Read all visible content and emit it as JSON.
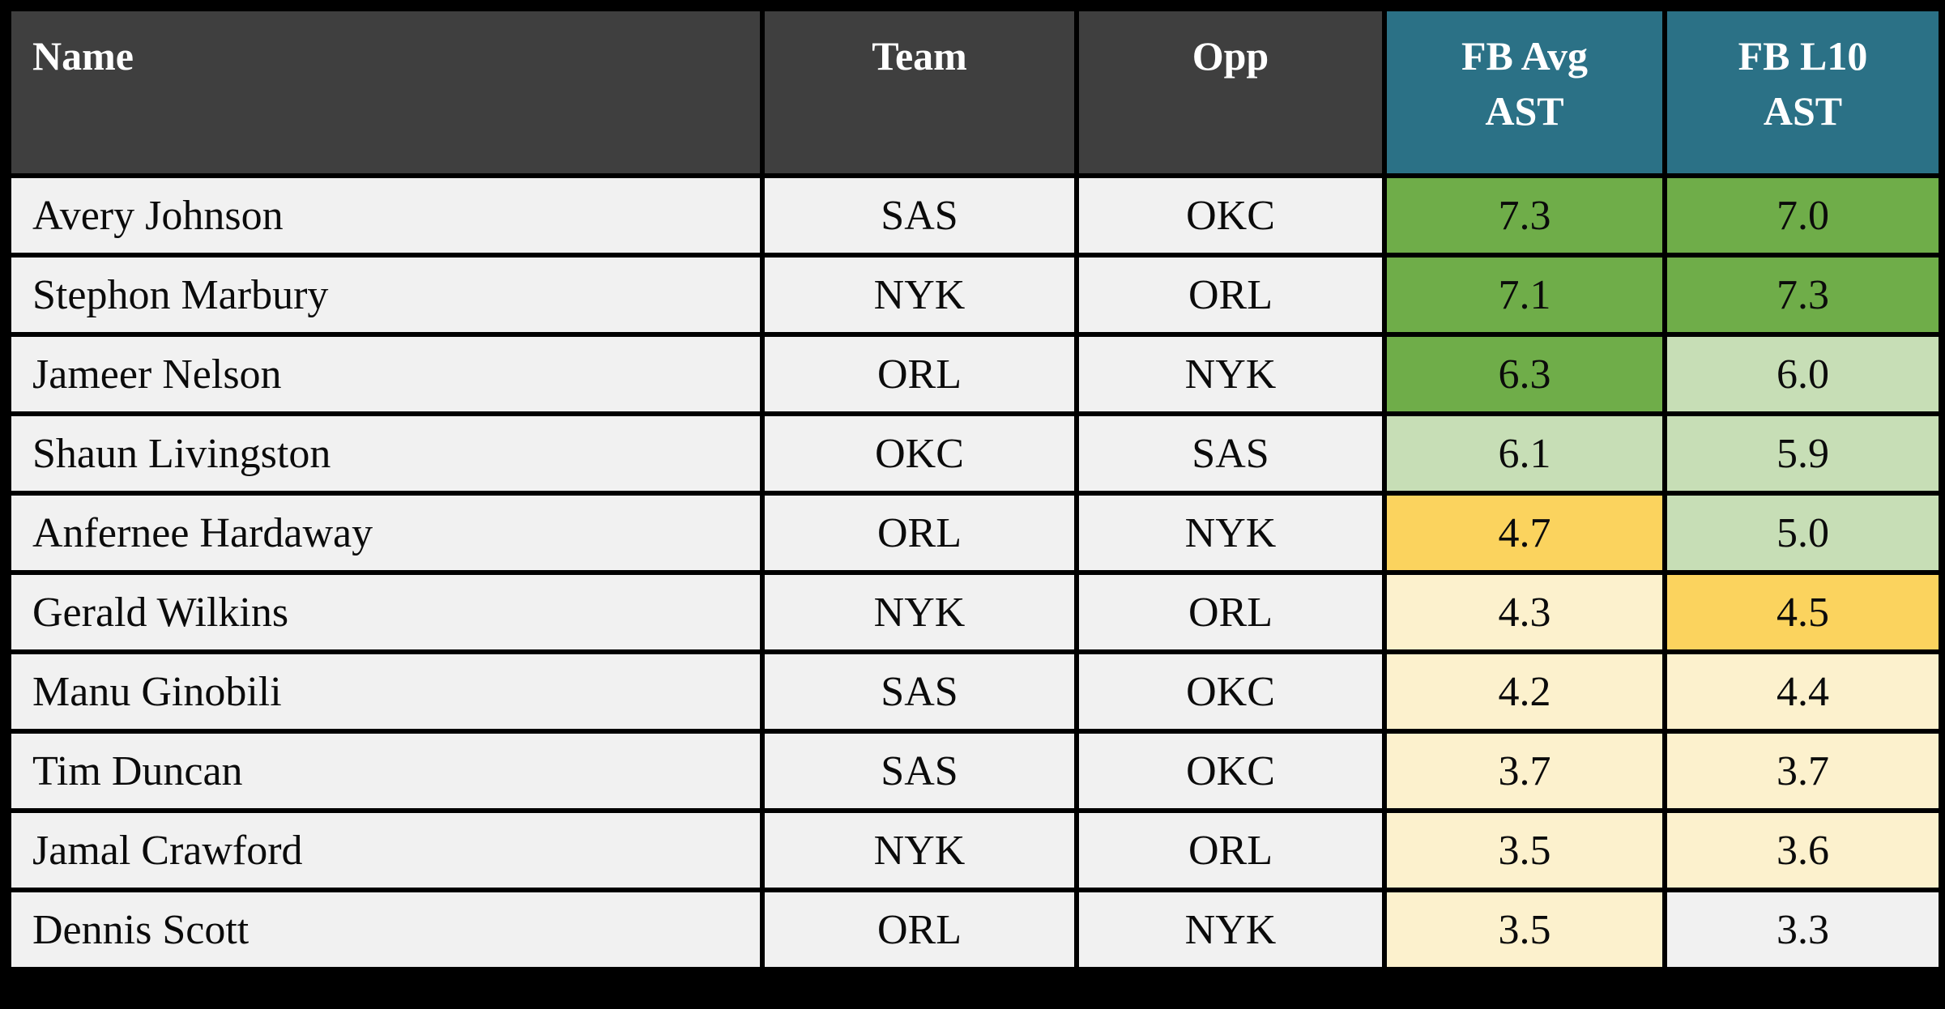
{
  "colors": {
    "frame": "#000000",
    "header_dark": "#3f3f3f",
    "header_teal": "#2b7186",
    "row_plain": "#f1f1f1",
    "green": "#6fad49",
    "lightgreen": "#c7deb6",
    "gold": "#fbd35e",
    "cream": "#fcf1cd",
    "plain": "#f1f1f1"
  },
  "header": {
    "name": "Name",
    "team": "Team",
    "opp": "Opp",
    "fb_avg": "FB Avg\nAST",
    "fb_l10": "FB L10\nAST"
  },
  "chart_data": {
    "type": "table",
    "columns": [
      "Name",
      "Team",
      "Opp",
      "FB Avg AST",
      "FB L10 AST"
    ],
    "rows": [
      {
        "name": "Avery Johnson",
        "team": "SAS",
        "opp": "OKC",
        "fb_avg": "7.3",
        "fb_l10": "7.0",
        "fb_avg_color": "green",
        "fb_l10_color": "green"
      },
      {
        "name": "Stephon Marbury",
        "team": "NYK",
        "opp": "ORL",
        "fb_avg": "7.1",
        "fb_l10": "7.3",
        "fb_avg_color": "green",
        "fb_l10_color": "green"
      },
      {
        "name": "Jameer Nelson",
        "team": "ORL",
        "opp": "NYK",
        "fb_avg": "6.3",
        "fb_l10": "6.0",
        "fb_avg_color": "green",
        "fb_l10_color": "lightgreen"
      },
      {
        "name": "Shaun Livingston",
        "team": "OKC",
        "opp": "SAS",
        "fb_avg": "6.1",
        "fb_l10": "5.9",
        "fb_avg_color": "lightgreen",
        "fb_l10_color": "lightgreen"
      },
      {
        "name": "Anfernee Hardaway",
        "team": "ORL",
        "opp": "NYK",
        "fb_avg": "4.7",
        "fb_l10": "5.0",
        "fb_avg_color": "gold",
        "fb_l10_color": "lightgreen"
      },
      {
        "name": "Gerald Wilkins",
        "team": "NYK",
        "opp": "ORL",
        "fb_avg": "4.3",
        "fb_l10": "4.5",
        "fb_avg_color": "cream",
        "fb_l10_color": "gold"
      },
      {
        "name": "Manu Ginobili",
        "team": "SAS",
        "opp": "OKC",
        "fb_avg": "4.2",
        "fb_l10": "4.4",
        "fb_avg_color": "cream",
        "fb_l10_color": "cream"
      },
      {
        "name": "Tim Duncan",
        "team": "SAS",
        "opp": "OKC",
        "fb_avg": "3.7",
        "fb_l10": "3.7",
        "fb_avg_color": "cream",
        "fb_l10_color": "cream"
      },
      {
        "name": "Jamal Crawford",
        "team": "NYK",
        "opp": "ORL",
        "fb_avg": "3.5",
        "fb_l10": "3.6",
        "fb_avg_color": "cream",
        "fb_l10_color": "cream"
      },
      {
        "name": "Dennis Scott",
        "team": "ORL",
        "opp": "NYK",
        "fb_avg": "3.5",
        "fb_l10": "3.3",
        "fb_avg_color": "cream",
        "fb_l10_color": "plain"
      }
    ]
  }
}
